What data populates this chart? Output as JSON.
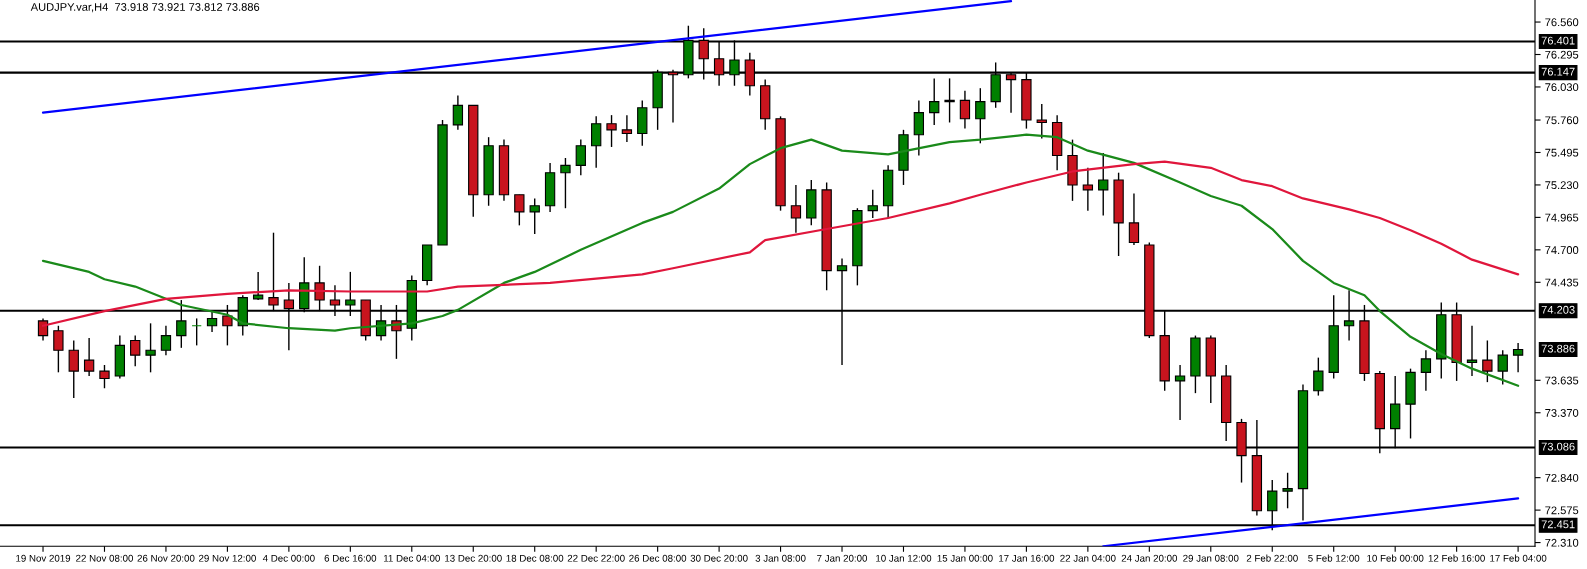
{
  "chart_data": {
    "type": "candlestick",
    "title": "AUDJPY.var,H4  73.918 73.921 73.812 73.886",
    "categories": [
      "19 Nov 2019",
      null,
      null,
      null,
      "22 Nov 08:00",
      null,
      null,
      null,
      "26 Nov 20:00",
      null,
      null,
      null,
      "29 Nov 12:00",
      null,
      null,
      null,
      "4 Dec 00:00",
      null,
      null,
      null,
      "6 Dec 16:00",
      null,
      null,
      null,
      "11 Dec 04:00",
      null,
      null,
      null,
      "13 Dec 20:00",
      null,
      null,
      null,
      "18 Dec 08:00",
      null,
      null,
      null,
      "22 Dec 22:00",
      null,
      null,
      null,
      "26 Dec 08:00",
      null,
      null,
      null,
      "30 Dec 20:00",
      null,
      null,
      null,
      "3 Jan 08:00",
      null,
      null,
      null,
      "7 Jan 20:00",
      null,
      null,
      null,
      "10 Jan 12:00",
      null,
      null,
      null,
      "15 Jan 00:00",
      null,
      null,
      null,
      "17 Jan 16:00",
      null,
      null,
      null,
      "22 Jan 04:00",
      null,
      null,
      null,
      "24 Jan 20:00",
      null,
      null,
      null,
      "29 Jan 08:00",
      null,
      null,
      null,
      "2 Feb 22:00",
      null,
      null,
      null,
      "5 Feb 12:00",
      null,
      null,
      null,
      "10 Feb 00:00",
      null,
      null,
      null,
      "12 Feb 16:00",
      null,
      null,
      null,
      "17 Feb 04:00"
    ],
    "ohlc": [
      [
        74.12,
        74.14,
        73.96,
        74.0
      ],
      [
        74.04,
        74.08,
        73.7,
        73.88
      ],
      [
        73.88,
        73.96,
        73.49,
        73.71
      ],
      [
        73.8,
        73.98,
        73.67,
        73.71
      ],
      [
        73.71,
        73.76,
        73.57,
        73.65
      ],
      [
        73.67,
        74.0,
        73.65,
        73.92
      ],
      [
        73.96,
        74.0,
        73.75,
        73.84
      ],
      [
        73.84,
        74.1,
        73.7,
        73.88
      ],
      [
        73.88,
        74.08,
        73.84,
        74.0
      ],
      [
        74.0,
        74.29,
        73.9,
        74.12
      ],
      [
        74.08,
        74.14,
        73.92,
        74.08
      ],
      [
        74.08,
        74.2,
        74.03,
        74.14
      ],
      [
        74.16,
        74.25,
        73.92,
        74.08
      ],
      [
        74.08,
        74.33,
        74.0,
        74.31
      ],
      [
        74.3,
        74.52,
        74.29,
        74.33
      ],
      [
        74.31,
        74.84,
        74.2,
        74.25
      ],
      [
        74.29,
        74.43,
        73.88,
        74.22
      ],
      [
        74.22,
        74.64,
        74.19,
        74.43
      ],
      [
        74.43,
        74.57,
        74.2,
        74.29
      ],
      [
        74.29,
        74.41,
        74.16,
        74.25
      ],
      [
        74.25,
        74.52,
        74.16,
        74.29
      ],
      [
        74.29,
        74.29,
        73.96,
        74.0
      ],
      [
        74.0,
        74.25,
        73.96,
        74.12
      ],
      [
        74.12,
        74.25,
        73.81,
        74.04
      ],
      [
        74.06,
        74.49,
        73.96,
        74.45
      ],
      [
        74.45,
        74.74,
        74.41,
        74.74
      ],
      [
        74.74,
        75.76,
        74.74,
        75.72
      ],
      [
        75.72,
        75.96,
        75.68,
        75.88
      ],
      [
        75.88,
        75.88,
        74.97,
        75.15
      ],
      [
        75.15,
        75.62,
        75.06,
        75.55
      ],
      [
        75.55,
        75.6,
        75.1,
        75.15
      ],
      [
        75.15,
        75.15,
        74.9,
        75.01
      ],
      [
        75.01,
        75.12,
        74.83,
        75.06
      ],
      [
        75.06,
        75.41,
        75.01,
        75.33
      ],
      [
        75.33,
        75.45,
        75.04,
        75.39
      ],
      [
        75.39,
        75.6,
        75.31,
        75.55
      ],
      [
        75.55,
        75.79,
        75.37,
        75.73
      ],
      [
        75.73,
        75.8,
        75.54,
        75.68
      ],
      [
        75.68,
        75.8,
        75.58,
        75.65
      ],
      [
        75.65,
        75.92,
        75.55,
        75.86
      ],
      [
        75.86,
        76.17,
        75.68,
        76.15
      ],
      [
        76.15,
        76.17,
        75.74,
        76.13
      ],
      [
        76.13,
        76.53,
        76.1,
        76.41
      ],
      [
        76.41,
        76.51,
        76.09,
        76.26
      ],
      [
        76.26,
        76.4,
        76.04,
        76.13
      ],
      [
        76.13,
        76.41,
        76.04,
        76.25
      ],
      [
        76.25,
        76.31,
        75.96,
        76.04
      ],
      [
        76.04,
        76.09,
        75.68,
        75.77
      ],
      [
        75.77,
        75.79,
        75.02,
        75.06
      ],
      [
        75.06,
        75.23,
        74.84,
        74.96
      ],
      [
        74.96,
        75.27,
        74.9,
        75.19
      ],
      [
        75.19,
        75.25,
        74.37,
        74.53
      ],
      [
        74.53,
        74.63,
        73.76,
        74.57
      ],
      [
        74.57,
        75.04,
        74.41,
        75.02
      ],
      [
        75.02,
        75.19,
        74.96,
        75.06
      ],
      [
        75.06,
        75.39,
        74.96,
        75.35
      ],
      [
        75.35,
        75.68,
        75.23,
        75.64
      ],
      [
        75.64,
        75.92,
        75.47,
        75.82
      ],
      [
        75.82,
        76.1,
        75.72,
        75.91
      ],
      [
        75.91,
        76.1,
        75.74,
        75.92
      ],
      [
        75.92,
        76.0,
        75.69,
        75.77
      ],
      [
        75.77,
        76.02,
        75.57,
        75.91
      ],
      [
        75.91,
        76.23,
        75.86,
        76.13
      ],
      [
        76.13,
        76.15,
        75.82,
        76.09
      ],
      [
        76.09,
        76.15,
        75.69,
        75.76
      ],
      [
        75.76,
        75.89,
        75.61,
        75.74
      ],
      [
        75.74,
        75.8,
        75.35,
        75.47
      ],
      [
        75.47,
        75.6,
        75.1,
        75.23
      ],
      [
        75.23,
        75.37,
        75.02,
        75.19
      ],
      [
        75.19,
        75.49,
        74.98,
        75.27
      ],
      [
        75.27,
        75.33,
        74.65,
        74.92
      ],
      [
        74.92,
        75.16,
        74.74,
        74.76
      ],
      [
        74.74,
        74.76,
        73.98,
        74.0
      ],
      [
        74.0,
        74.2,
        73.55,
        73.63
      ],
      [
        73.63,
        73.76,
        73.31,
        73.67
      ],
      [
        73.67,
        74.0,
        73.53,
        73.98
      ],
      [
        73.98,
        74.0,
        73.45,
        73.67
      ],
      [
        73.67,
        73.76,
        73.14,
        73.29
      ],
      [
        73.29,
        73.32,
        72.8,
        73.02
      ],
      [
        73.02,
        73.31,
        72.53,
        72.57
      ],
      [
        72.57,
        72.82,
        72.41,
        72.73
      ],
      [
        72.73,
        72.88,
        72.59,
        72.75
      ],
      [
        72.75,
        73.6,
        72.49,
        73.55
      ],
      [
        73.55,
        73.82,
        73.51,
        73.71
      ],
      [
        73.7,
        74.33,
        73.65,
        74.08
      ],
      [
        74.08,
        74.37,
        73.96,
        74.12
      ],
      [
        74.12,
        74.25,
        73.63,
        73.69
      ],
      [
        73.69,
        73.71,
        73.04,
        73.24
      ],
      [
        73.24,
        73.67,
        73.08,
        73.44
      ],
      [
        73.44,
        73.73,
        73.16,
        73.7
      ],
      [
        73.7,
        73.88,
        73.55,
        73.81
      ],
      [
        73.81,
        74.27,
        73.65,
        74.17
      ],
      [
        74.17,
        74.27,
        73.63,
        73.78
      ],
      [
        73.78,
        74.08,
        73.67,
        73.8
      ],
      [
        73.8,
        73.96,
        73.62,
        73.71
      ],
      [
        73.71,
        73.88,
        73.6,
        73.84
      ],
      [
        73.84,
        73.94,
        73.7,
        73.886
      ]
    ],
    "colors": [
      "#c8141e",
      "#c8141e",
      "#c8141e",
      "#c8141e",
      "#c8141e",
      "#008000",
      "#c8141e",
      "#008000",
      "#008000",
      "#008000",
      "#008000",
      "#008000",
      "#c8141e",
      "#008000",
      "#008000",
      "#c8141e",
      "#c8141e",
      "#008000",
      "#c8141e",
      "#c8141e",
      "#008000",
      "#c8141e",
      "#008000",
      "#c8141e",
      "#008000",
      "#008000",
      "#008000",
      "#008000",
      "#c8141e",
      "#008000",
      "#c8141e",
      "#c8141e",
      "#008000",
      "#008000",
      "#008000",
      "#008000",
      "#008000",
      "#c8141e",
      "#c8141e",
      "#008000",
      "#008000",
      "#c8141e",
      "#008000",
      "#c8141e",
      "#c8141e",
      "#008000",
      "#c8141e",
      "#c8141e",
      "#c8141e",
      "#c8141e",
      "#008000",
      "#c8141e",
      "#008000",
      "#008000",
      "#008000",
      "#008000",
      "#008000",
      "#008000",
      "#008000",
      "#008000",
      "#c8141e",
      "#008000",
      "#008000",
      "#c8141e",
      "#c8141e",
      "#c8141e",
      "#c8141e",
      "#c8141e",
      "#c8141e",
      "#008000",
      "#c8141e",
      "#c8141e",
      "#c8141e",
      "#c8141e",
      "#008000",
      "#008000",
      "#c8141e",
      "#c8141e",
      "#c8141e",
      "#c8141e",
      "#008000",
      "#008000",
      "#008000",
      "#008000",
      "#008000",
      "#008000",
      "#c8141e",
      "#c8141e",
      "#008000",
      "#008000",
      "#008000",
      "#008000",
      "#c8141e",
      "#008000",
      "#c8141e",
      "#008000",
      "#008000"
    ],
    "series": [
      {
        "type": "line",
        "color": "#1a8a1a",
        "values": [
          74.61,
          null,
          null,
          74.52,
          74.46,
          null,
          74.4,
          null,
          74.3,
          74.25,
          null,
          null,
          74.17,
          74.1,
          null,
          null,
          74.06,
          null,
          null,
          74.04,
          74.06,
          null,
          null,
          null,
          74.1,
          null,
          74.16,
          74.21,
          null,
          null,
          74.43,
          null,
          74.52,
          null,
          null,
          74.7,
          null,
          null,
          null,
          74.92,
          null,
          75.01,
          null,
          null,
          75.2,
          null,
          75.4,
          null,
          75.53,
          null,
          75.6,
          null,
          75.51,
          null,
          null,
          75.48,
          null,
          null,
          null,
          75.58,
          null,
          75.6,
          null,
          null,
          75.64,
          null,
          75.62,
          null,
          75.51,
          null,
          null,
          75.41,
          null,
          null,
          75.25,
          null,
          75.14,
          null,
          75.06,
          null,
          74.87,
          null,
          74.61,
          null,
          74.43,
          null,
          74.33,
          74.2,
          null,
          73.99,
          null,
          73.85,
          null,
          73.73,
          null,
          null,
          73.59
        ]
      },
      {
        "type": "line",
        "color": "#e0163c",
        "values": [
          74.08,
          null,
          null,
          null,
          74.2,
          null,
          null,
          null,
          74.3,
          null,
          null,
          null,
          74.34,
          null,
          null,
          null,
          74.37,
          null,
          null,
          null,
          74.36,
          null,
          null,
          null,
          null,
          74.36,
          null,
          74.4,
          null,
          null,
          null,
          null,
          null,
          74.43,
          null,
          null,
          null,
          null,
          null,
          74.5,
          null,
          74.55,
          null,
          null,
          null,
          null,
          74.68,
          74.78,
          null,
          null,
          null,
          74.87,
          null,
          null,
          null,
          74.96,
          null,
          null,
          null,
          75.08,
          null,
          75.15,
          null,
          null,
          75.25,
          null,
          null,
          75.34,
          null,
          null,
          null,
          75.4,
          null,
          75.42,
          null,
          null,
          75.37,
          null,
          75.27,
          null,
          75.22,
          null,
          75.12,
          null,
          null,
          75.03,
          null,
          74.96,
          null,
          74.86,
          null,
          74.75,
          null,
          74.62,
          null,
          null,
          74.5
        ]
      },
      {
        "type": "line",
        "color": "#0000ff",
        "values": [
          75.82,
          null,
          null,
          null,
          null,
          null,
          null,
          null,
          null,
          null,
          null,
          null,
          null,
          null,
          null,
          null,
          null,
          null,
          null,
          null,
          null,
          null,
          null,
          null,
          null,
          null,
          null,
          null,
          null,
          null,
          null,
          null,
          null,
          null,
          null,
          null,
          null,
          null,
          null,
          null,
          null,
          null,
          null,
          null,
          null,
          null,
          null,
          null,
          null,
          null,
          null,
          null,
          null,
          null,
          null,
          null,
          null,
          null,
          null,
          null,
          null,
          null,
          null,
          76.73,
          null,
          null,
          null,
          null,
          null,
          null,
          null,
          null,
          null,
          null,
          null,
          null,
          null,
          null,
          null,
          null,
          null,
          null,
          null,
          null,
          null,
          null,
          null,
          null,
          null,
          null,
          null,
          null,
          null,
          null,
          null,
          null,
          null
        ]
      },
      {
        "type": "line",
        "color": "#0000ff",
        "values": [
          null,
          null,
          null,
          null,
          null,
          null,
          null,
          null,
          null,
          null,
          null,
          null,
          null,
          null,
          null,
          null,
          null,
          null,
          null,
          null,
          null,
          null,
          null,
          null,
          null,
          null,
          null,
          null,
          null,
          null,
          null,
          null,
          null,
          null,
          null,
          null,
          null,
          null,
          null,
          null,
          null,
          null,
          null,
          null,
          null,
          null,
          null,
          null,
          null,
          null,
          null,
          null,
          null,
          null,
          null,
          null,
          null,
          null,
          null,
          null,
          null,
          null,
          null,
          null,
          null,
          null,
          null,
          null,
          null,
          72.28,
          null,
          null,
          null,
          null,
          null,
          null,
          null,
          null,
          null,
          null,
          null,
          null,
          null,
          null,
          null,
          null,
          null,
          null,
          null,
          null,
          null,
          null,
          null,
          null,
          null,
          null,
          72.67
        ]
      }
    ],
    "ylim": [
      72.28,
      76.74
    ],
    "yticks": [
      {
        "value": 76.56,
        "label": "76.560"
      },
      76.295,
      {
        "value": 76.03,
        "label": "76.030"
      },
      {
        "value": 75.76,
        "label": "75.760"
      },
      75.495,
      {
        "value": 75.23,
        "label": "75.230"
      },
      74.965,
      {
        "value": 74.7,
        "label": "74.700"
      },
      74.435,
      73.635,
      {
        "value": 73.37,
        "label": "73.370"
      },
      {
        "value": 72.84,
        "label": "72.840"
      },
      72.575,
      {
        "value": 72.31,
        "label": "72.310"
      }
    ],
    "ref_lines": [
      {
        "axis": "y",
        "value": 76.401,
        "label": "76.401",
        "color": "#000000"
      },
      {
        "axis": "y",
        "value": 76.147,
        "label": "76.147",
        "color": "#000000"
      },
      {
        "axis": "y",
        "value": 74.203,
        "label": "74.203",
        "color": "#000000"
      },
      {
        "axis": "y",
        "value": 73.086,
        "label": "73.086",
        "color": "#000000"
      },
      {
        "axis": "y",
        "value": 72.451,
        "label": "72.451",
        "color": "#000000"
      }
    ],
    "annotations": [
      "73.886"
    ]
  }
}
